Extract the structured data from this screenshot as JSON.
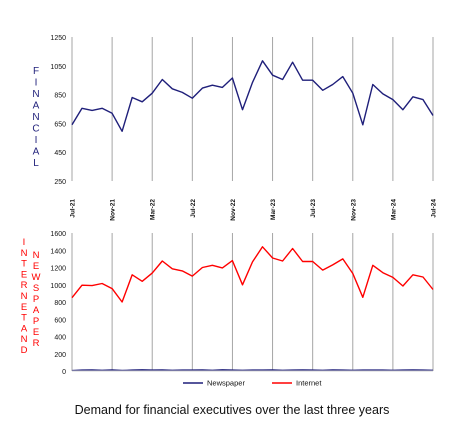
{
  "caption": "Demand for financial executives over the last three years",
  "chart_data": [
    {
      "type": "line",
      "ylabel": "FINANCIAL",
      "ylim": [
        250,
        1250
      ],
      "yticks": [
        250,
        450,
        650,
        850,
        1050,
        1250
      ],
      "x_ticks": [
        "Jul-21",
        "Nov-21",
        "Mar-22",
        "Jul-22",
        "Nov-22",
        "Mar-23",
        "Jul-23",
        "Nov-23",
        "Mar-24",
        "Jul-24"
      ],
      "grid": "vertical",
      "series": [
        {
          "color": "#1f1f7a",
          "values": [
            640,
            755,
            740,
            755,
            720,
            595,
            830,
            800,
            860,
            955,
            890,
            865,
            825,
            895,
            915,
            900,
            965,
            745,
            935,
            1085,
            985,
            955,
            1075,
            950,
            950,
            880,
            920,
            975,
            860,
            640,
            920,
            855,
            815,
            745,
            835,
            815,
            705
          ]
        }
      ]
    },
    {
      "type": "line",
      "ylabel_left": "INTERNET AND",
      "ylabel_right": "NEWSPAPER",
      "ylim": [
        0,
        1600
      ],
      "yticks": [
        0,
        200,
        400,
        600,
        800,
        1000,
        1200,
        1400,
        1600
      ],
      "grid": "vertical",
      "legend": "bottom",
      "series": [
        {
          "name": "Newspaper",
          "color": "#1f1f7a",
          "values": [
            5,
            10,
            12,
            8,
            12,
            6,
            10,
            14,
            10,
            12,
            8,
            10,
            10,
            12,
            8,
            14,
            10,
            8,
            10,
            10,
            12,
            8,
            10,
            12,
            10,
            8,
            12,
            10,
            8,
            10,
            10,
            10,
            8,
            10,
            12,
            10,
            8
          ]
        },
        {
          "name": "Internet",
          "color": "#ff0000",
          "values": [
            850,
            995,
            990,
            1015,
            955,
            800,
            1115,
            1040,
            1135,
            1275,
            1185,
            1160,
            1100,
            1200,
            1225,
            1195,
            1280,
            1000,
            1265,
            1440,
            1310,
            1275,
            1420,
            1270,
            1270,
            1170,
            1230,
            1300,
            1130,
            855,
            1225,
            1140,
            1085,
            985,
            1115,
            1090,
            945
          ]
        }
      ]
    }
  ]
}
